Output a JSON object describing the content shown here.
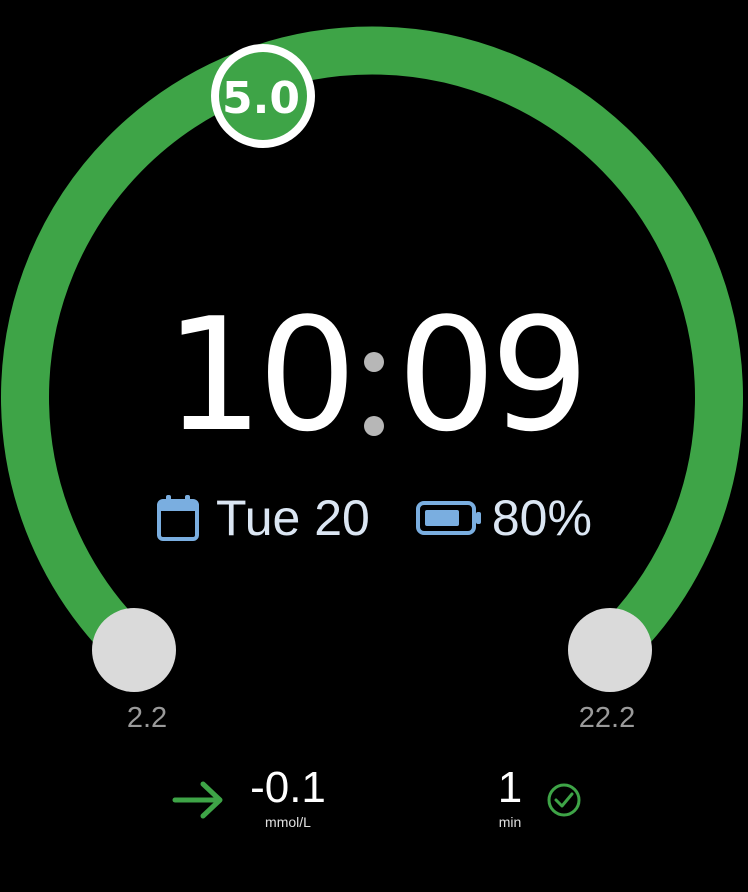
{
  "gauge": {
    "current_value": "5.0",
    "range_min_label": "2.2",
    "range_max_label": "22.2",
    "arc_color": "#3ea447",
    "knob_color": "#dadada"
  },
  "clock": {
    "hours": "10",
    "minutes": "09"
  },
  "info": {
    "date_label": "Tue 20",
    "battery_label": "80%",
    "battery_level": 0.8,
    "icon_color": "#7aaee0"
  },
  "trend": {
    "value": "-0.1",
    "unit": "mmol/L",
    "icon": "arrow-right-icon",
    "icon_color": "#3ea447"
  },
  "reading_age": {
    "value": "1",
    "unit": "min",
    "icon": "check-circle-icon",
    "icon_color": "#3ea447"
  }
}
